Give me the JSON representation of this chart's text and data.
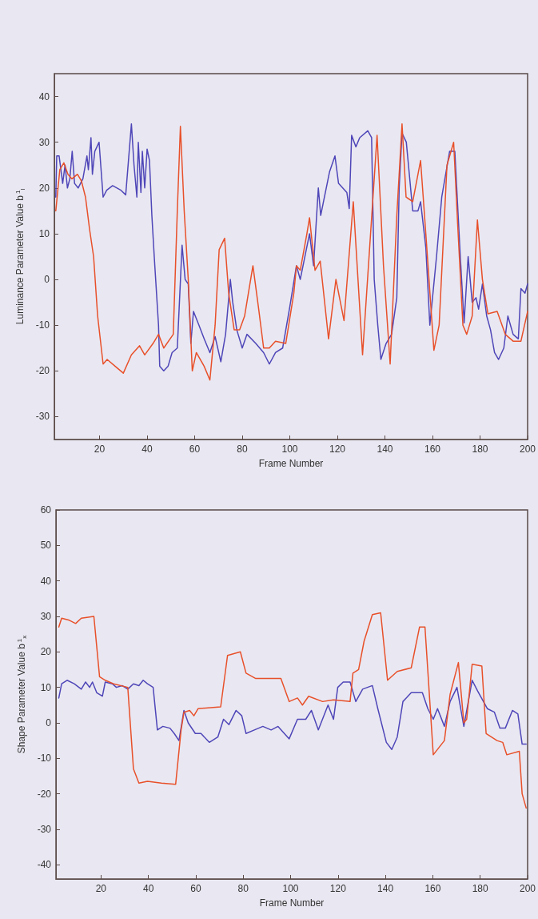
{
  "chart_data": [
    {
      "type": "line",
      "xlabel": "Frame Number",
      "ylabel": "Luminance Parameter Value b$^{1}$$_{l}$",
      "xlim": [
        1,
        200
      ],
      "ylim": [
        -35,
        45
      ],
      "xticks": [
        20,
        40,
        60,
        80,
        100,
        120,
        140,
        160,
        180,
        200
      ],
      "yticks": [
        -30,
        -20,
        -10,
        0,
        10,
        20,
        30,
        40
      ],
      "grid": false,
      "marker": "none",
      "line_style": "solid",
      "series": [
        {
          "color": "#4f46b8",
          "x": [
            1.6,
            2,
            3,
            4.5,
            5.5,
            6.5,
            7.5,
            8.5,
            9.5,
            11,
            13,
            14.7,
            15.3,
            16.4,
            17,
            18,
            19.8,
            21.5,
            23,
            25.5,
            29,
            31,
            33.4,
            34.5,
            35.7,
            36.3,
            37.4,
            38,
            39,
            40,
            41,
            42,
            43,
            44.8,
            45.3,
            47,
            48.8,
            50.5,
            52.7,
            54.7,
            56,
            57.3,
            58.4,
            59.5,
            61.8,
            64,
            66.4,
            68.6,
            71,
            73,
            75,
            76,
            77.7,
            80,
            82,
            85.7,
            89,
            91.4,
            94,
            97,
            100,
            102.8,
            104.4,
            108.3,
            110,
            112,
            113,
            116.7,
            119,
            120.5,
            124,
            125,
            126,
            127.8,
            129.4,
            132.8,
            134.4,
            135.5,
            137,
            138.3,
            140.5,
            142.8,
            145,
            146,
            147.2,
            149,
            151.7,
            153.9,
            155,
            157.2,
            158.9,
            161.7,
            163.9,
            167.2,
            169.4,
            171.7,
            173.3,
            175,
            176.7,
            178.3,
            179.4,
            181,
            182.8,
            184.4,
            186.1,
            187.8,
            190,
            191.7,
            193.9,
            196.1,
            197.2,
            198.9,
            200
          ],
          "values": [
            18,
            27,
            27,
            21,
            25,
            20,
            22,
            28,
            21,
            20,
            22,
            27,
            24,
            31,
            23,
            28,
            30,
            18,
            19.5,
            20.5,
            19.5,
            18.5,
            34,
            25,
            18,
            30,
            19,
            28,
            20,
            28.5,
            26,
            14,
            5,
            -10,
            -19,
            -20,
            -19,
            -16,
            -15,
            7.5,
            0,
            -1,
            -14,
            -7,
            -10,
            -13,
            -16,
            -12.5,
            -18,
            -12,
            0,
            -5,
            -11,
            -15,
            -12,
            -14,
            -16,
            -18.5,
            -16,
            -15,
            -6,
            3,
            0,
            10,
            3,
            20,
            14,
            23.5,
            27,
            21,
            19,
            15.5,
            31.5,
            29,
            31,
            32.5,
            31,
            0,
            -10,
            -17.5,
            -14,
            -12,
            -4,
            20,
            32,
            30,
            15,
            15,
            17,
            7,
            -10,
            5,
            18,
            28,
            28,
            5,
            -9.5,
            5,
            -5,
            -4,
            -6.5,
            -1,
            -8,
            -11,
            -16,
            -17.5,
            -15,
            -8,
            -12,
            -13,
            -2,
            -3,
            -1
          ]
        },
        {
          "color": "#e8502a",
          "x": [
            1.6,
            3.3,
            5,
            6.7,
            8.4,
            10.7,
            12.4,
            14.1,
            15.8,
            17.5,
            19.2,
            21.5,
            23.2,
            26.6,
            30,
            33.4,
            36.8,
            39,
            42.5,
            44.8,
            47,
            51,
            52.7,
            54,
            55.6,
            57.3,
            59,
            60.7,
            64,
            66.4,
            68.6,
            70.3,
            72.6,
            74.3,
            76.6,
            78.9,
            81,
            84.5,
            86.8,
            89,
            91.4,
            94,
            98.3,
            101.7,
            102.8,
            104.4,
            107.2,
            108.3,
            110.6,
            112.8,
            116.3,
            119.4,
            122.8,
            126.7,
            130.6,
            136.7,
            139.4,
            142.2,
            145,
            147.2,
            148.9,
            151.7,
            155,
            157.2,
            160.6,
            162.8,
            166.1,
            168.9,
            170.6,
            172.8,
            174.4,
            176.7,
            178.9,
            181,
            183.3,
            187.2,
            190.6,
            193.9,
            197.2,
            200
          ],
          "values": [
            15,
            24,
            25.5,
            23,
            22,
            23,
            21.5,
            18,
            11,
            5,
            -8,
            -18.5,
            -17.5,
            -19,
            -20.5,
            -16.5,
            -14.5,
            -16.5,
            -14,
            -12,
            -15,
            -12,
            15,
            33.5,
            15,
            0,
            -20,
            -16,
            -19,
            -22,
            -10,
            6.5,
            9,
            -3,
            -11,
            -11,
            -8,
            3,
            -6,
            -15,
            -15,
            -13.5,
            -14,
            -3,
            3,
            2,
            10,
            13.5,
            2,
            4,
            -13,
            0,
            -9,
            17,
            -16.5,
            31.5,
            3,
            -18.5,
            14,
            34,
            18,
            17,
            26,
            10,
            -15.5,
            -10,
            25,
            30,
            12,
            -10,
            -12,
            -8,
            13,
            0,
            -7.5,
            -7,
            -12,
            -13.5,
            -13.5,
            -7
          ]
        }
      ]
    },
    {
      "type": "line",
      "xlabel": "Frame Number",
      "ylabel": "Shape Parameter Value b$^{1}$$_{x}$",
      "xlim": [
        1,
        200
      ],
      "ylim": [
        -44,
        60
      ],
      "xticks": [
        20,
        40,
        60,
        80,
        100,
        120,
        140,
        160,
        180,
        200
      ],
      "yticks": [
        -40,
        -30,
        -20,
        -10,
        0,
        10,
        20,
        30,
        40,
        50,
        60
      ],
      "grid": false,
      "marker": "none",
      "line_style": "solid",
      "series": [
        {
          "color": "#4f46b8",
          "x": [
            2.2,
            3.4,
            5.7,
            8.7,
            11.7,
            13.5,
            15.2,
            16.4,
            18.2,
            20.6,
            21.8,
            24.8,
            26.5,
            28.9,
            31.3,
            33.7,
            36,
            37.8,
            39.6,
            42,
            43.8,
            46.1,
            49.1,
            50.9,
            52.9,
            55,
            56.8,
            59.8,
            62.2,
            65.7,
            69.3,
            71.7,
            74,
            77,
            79.4,
            81.2,
            84.7,
            88.3,
            91.8,
            94.7,
            99.4,
            102.9,
            106.4,
            108.8,
            111.7,
            115.8,
            118.1,
            119.9,
            122.2,
            125.1,
            127.5,
            130.4,
            134.5,
            136.8,
            140.4,
            142.7,
            145,
            147.4,
            150.9,
            155.6,
            157.9,
            160.2,
            162,
            164.9,
            167.3,
            170.2,
            173.1,
            176.6,
            178.9,
            183,
            186,
            188.3,
            190.6,
            193.6,
            195.9,
            197.7,
            199.4
          ],
          "values": [
            7,
            11,
            12,
            11,
            9.5,
            11.5,
            10,
            11.5,
            8.5,
            7.5,
            11.5,
            11,
            10,
            10.5,
            9.5,
            11,
            10.5,
            12,
            11,
            10,
            -2,
            -1,
            -1.5,
            -3,
            -5,
            3.5,
            0,
            -3,
            -3,
            -5.5,
            -4,
            1,
            -0.5,
            3.5,
            2,
            -3,
            -2,
            -1,
            -2,
            -1,
            -4.5,
            1,
            1,
            3.5,
            -2,
            5,
            1,
            10,
            11.5,
            11.5,
            6,
            9.5,
            10.5,
            4,
            -5.5,
            -7.5,
            -4,
            6,
            8.5,
            8.5,
            4,
            1,
            4,
            -1,
            6,
            10,
            -1,
            12,
            9,
            4,
            3,
            -1.5,
            -1.5,
            3.5,
            2.5,
            -6,
            -6
          ]
        },
        {
          "color": "#e8502a",
          "x": [
            2.2,
            3.4,
            6.3,
            9.3,
            11.7,
            17,
            19.4,
            21.8,
            25.3,
            31.3,
            33.7,
            36,
            39.6,
            45.5,
            51.5,
            53.8,
            55,
            57.4,
            59.2,
            61,
            70.5,
            73.4,
            78.8,
            81.2,
            85.3,
            91.8,
            95.9,
            99.4,
            102.9,
            105,
            107.6,
            113.5,
            118.1,
            125.1,
            126.3,
            128.7,
            131,
            134.5,
            138,
            140.9,
            145,
            150.9,
            154.4,
            156.7,
            160.2,
            164.9,
            167.3,
            170.8,
            173.1,
            174.3,
            176.6,
            180.7,
            182.5,
            187.1,
            189.5,
            191.2,
            196.5,
            197.7,
            199.4
          ],
          "values": [
            27,
            29.5,
            29,
            28,
            29.5,
            30,
            13,
            12,
            11,
            10,
            -13,
            -17,
            -16.5,
            -17,
            -17.3,
            -2,
            3,
            3.5,
            2,
            4,
            4.5,
            19,
            20,
            14,
            12.5,
            12.5,
            12.5,
            6,
            7,
            5,
            7.5,
            6,
            6.5,
            6,
            14,
            15,
            23,
            30.5,
            31,
            12,
            14.5,
            15.5,
            27,
            27,
            -9,
            -5,
            8,
            17,
            0,
            1,
            16.5,
            16,
            -3,
            -5,
            -5.5,
            -9,
            -8,
            -20,
            -24
          ]
        }
      ]
    }
  ]
}
